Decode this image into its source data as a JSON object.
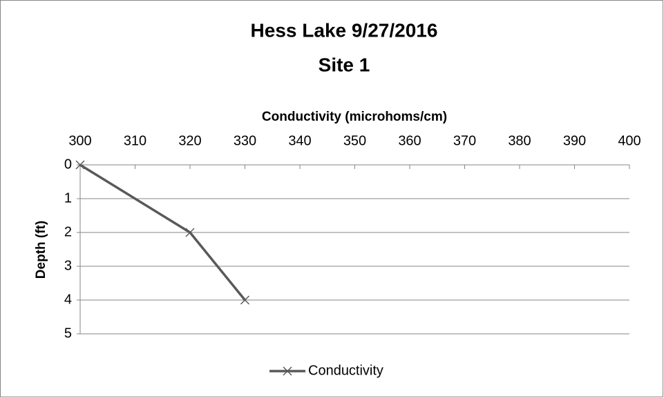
{
  "chart_data": {
    "type": "line",
    "title": "Hess Lake 9/27/2016",
    "subtitle": "Site 1",
    "xlabel": "Conductivity (microhoms/cm)",
    "ylabel": "Depth (ft)",
    "x": [
      300,
      320,
      330
    ],
    "series": [
      {
        "name": "Conductivity",
        "color": "#595959",
        "values": [
          0,
          2,
          4
        ]
      }
    ],
    "xlim": [
      300,
      400
    ],
    "xticks": [
      300,
      310,
      320,
      330,
      340,
      350,
      360,
      370,
      380,
      390,
      400
    ],
    "ylim": [
      0,
      5
    ],
    "yticks": [
      0,
      1,
      2,
      3,
      4,
      5
    ],
    "y_inverted": true,
    "x_axis_position": "top",
    "grid": true,
    "legend": "bottom"
  }
}
